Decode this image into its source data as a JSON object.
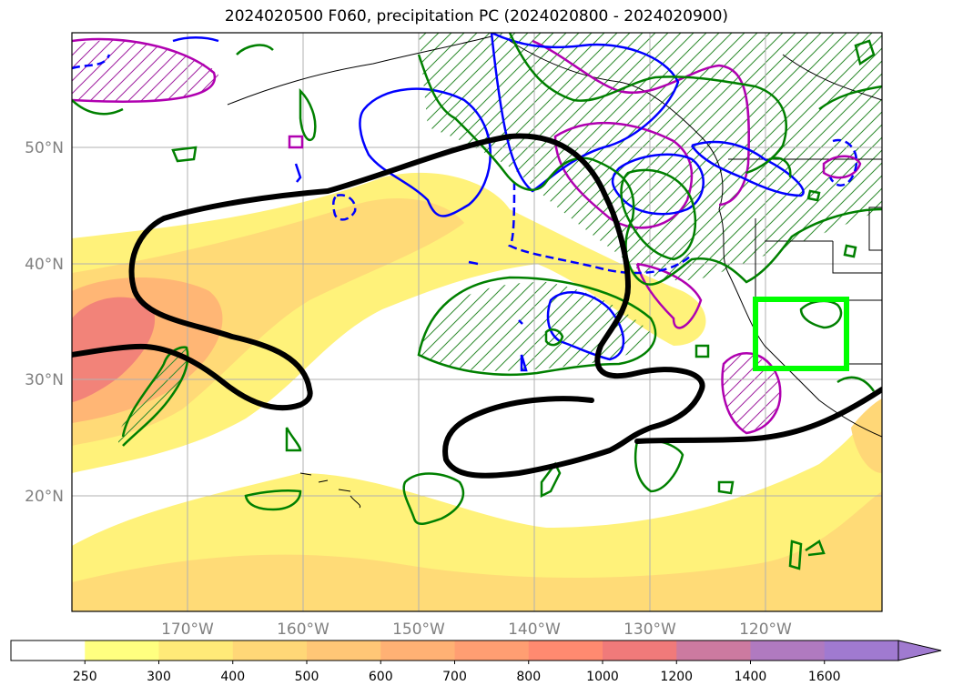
{
  "title": "2024020500 F060, precipitation PC (2024020800 - 2024020900)",
  "lat_labels": [
    "50°N",
    "40°N",
    "30°N",
    "20°N"
  ],
  "lon_labels": [
    "170°W",
    "160°W",
    "150°W",
    "140°W",
    "130°W",
    "120°W"
  ],
  "colorbar": {
    "ticks": [
      "250",
      "300",
      "400",
      "500",
      "600",
      "700",
      "800",
      "1000",
      "1200",
      "1400",
      "1600"
    ],
    "colors": [
      "#ffffff",
      "#ffff80",
      "#ffea78",
      "#ffd777",
      "#ffc676",
      "#ffb174",
      "#ff9e72",
      "#ff8a70",
      "#f07a7a",
      "#cc7aa0",
      "#b07ac0",
      "#a07ad0"
    ],
    "extend": "max"
  },
  "colors": {
    "contour_black": "#000000",
    "contour_green": "#008000",
    "contour_blue": "#0000ff",
    "contour_magenta": "#b000b0",
    "box_lime": "#00ff00",
    "grid": "#b0b0b0"
  }
}
